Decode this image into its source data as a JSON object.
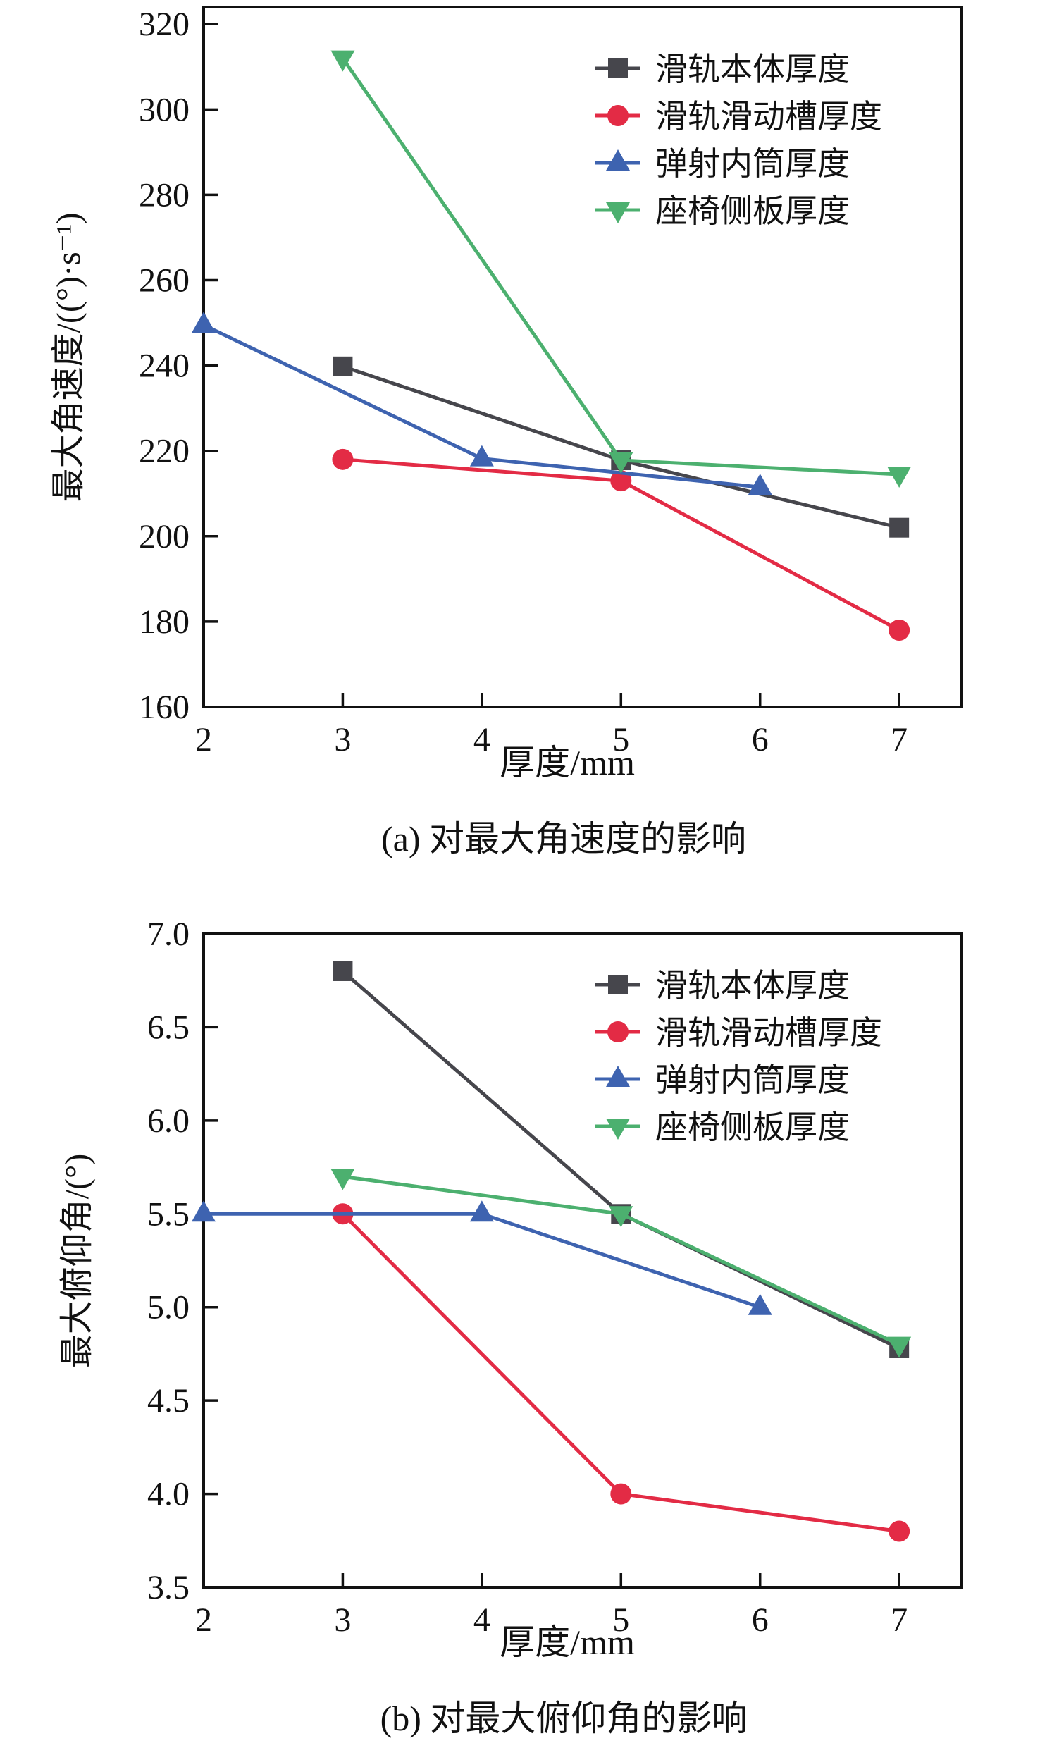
{
  "page": {
    "background": "#ffffff"
  },
  "colors": {
    "frame": "#111111",
    "tick_text": "#111111",
    "series_black": "#46464c",
    "series_red": "#e32b45",
    "series_blue": "#3e63b0",
    "series_green": "#4cb06f"
  },
  "chart_data": [
    {
      "type": "line",
      "caption": "(a) 对最大角速度的影响",
      "xlabel": "厚度/mm",
      "ylabel": "最大角速度/((°)·s⁻¹)",
      "xlim": [
        2,
        7.45
      ],
      "ylim": [
        160,
        324
      ],
      "xticks": [
        2,
        3,
        4,
        5,
        6,
        7
      ],
      "yticks": [
        160,
        180,
        200,
        220,
        240,
        260,
        280,
        300,
        320
      ],
      "ytick_decimals": 0,
      "grid": false,
      "legend_position": "top-right-inside",
      "series": [
        {
          "name": "滑轨本体厚度",
          "marker": "square",
          "color": "#46464c",
          "x": [
            3,
            5,
            7
          ],
          "y": [
            239.8,
            217.8,
            202.0
          ]
        },
        {
          "name": "滑轨滑动槽厚度",
          "marker": "circle",
          "color": "#e32b45",
          "x": [
            3,
            5,
            7
          ],
          "y": [
            218.0,
            213.0,
            178.0
          ]
        },
        {
          "name": "弹射内筒厚度",
          "marker": "triangle-up",
          "color": "#3e63b0",
          "x": [
            2,
            4,
            6
          ],
          "y": [
            249.5,
            218.2,
            211.5
          ]
        },
        {
          "name": "座椅侧板厚度",
          "marker": "triangle-down",
          "color": "#4cb06f",
          "x": [
            3,
            5,
            7
          ],
          "y": [
            312.0,
            217.8,
            214.5
          ]
        }
      ]
    },
    {
      "type": "line",
      "caption": "(b) 对最大俯仰角的影响",
      "xlabel": "厚度/mm",
      "ylabel": "最大俯仰角/(°)",
      "xlim": [
        2,
        7.45
      ],
      "ylim": [
        3.5,
        7.0
      ],
      "xticks": [
        2,
        3,
        4,
        5,
        6,
        7
      ],
      "yticks": [
        3.5,
        4.0,
        4.5,
        5.0,
        5.5,
        6.0,
        6.5,
        7.0
      ],
      "ytick_decimals": 1,
      "grid": false,
      "legend_position": "top-right-inside",
      "series": [
        {
          "name": "滑轨本体厚度",
          "marker": "square",
          "color": "#46464c",
          "x": [
            3,
            5,
            7
          ],
          "y": [
            6.8,
            5.5,
            4.78
          ]
        },
        {
          "name": "滑轨滑动槽厚度",
          "marker": "circle",
          "color": "#e32b45",
          "x": [
            3,
            5,
            7
          ],
          "y": [
            5.5,
            4.0,
            3.8
          ]
        },
        {
          "name": "弹射内筒厚度",
          "marker": "triangle-up",
          "color": "#3e63b0",
          "x": [
            2,
            4,
            6
          ],
          "y": [
            5.5,
            5.5,
            5.0
          ]
        },
        {
          "name": "座椅侧板厚度",
          "marker": "triangle-down",
          "color": "#4cb06f",
          "x": [
            3,
            5,
            7
          ],
          "y": [
            5.7,
            5.5,
            4.8
          ]
        }
      ]
    }
  ]
}
